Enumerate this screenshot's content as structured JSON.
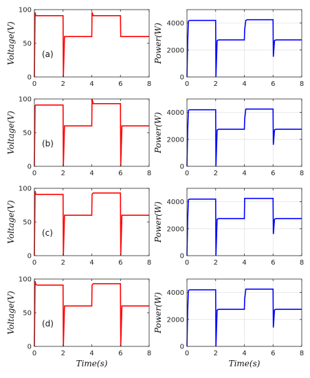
{
  "chart_data": [
    {
      "type": "line",
      "panel": "(a)",
      "quantity": "voltage",
      "ylabel": "Voltage(V)",
      "xlabel": "",
      "xlim": [
        0,
        8
      ],
      "ylim": [
        0,
        100
      ],
      "xticks": [
        "0",
        "2",
        "4",
        "6",
        "8"
      ],
      "yticks": [
        "0",
        "50",
        "100"
      ],
      "grid": "off",
      "series": [
        {
          "color": "#ff0000",
          "x": [
            0,
            0.05,
            0.1,
            0.2,
            2,
            2.02,
            2.1,
            2.2,
            4,
            4.02,
            4.1,
            4.2,
            6,
            6.02,
            6.1,
            6.2,
            8
          ],
          "y": [
            0,
            96,
            91,
            91,
            91,
            0,
            60,
            60,
            60,
            96,
            91,
            91,
            91,
            60,
            60,
            60,
            60
          ]
        }
      ]
    },
    {
      "type": "line",
      "panel": "",
      "quantity": "power",
      "ylabel": "Power(W)",
      "xlabel": "",
      "xlim": [
        0,
        8
      ],
      "ylim": [
        0,
        5000
      ],
      "xticks": [
        "0",
        "2",
        "4",
        "6",
        "8"
      ],
      "yticks": [
        "0",
        "2000",
        "4000"
      ],
      "grid": "on",
      "series": [
        {
          "color": "#0000ff",
          "x": [
            0,
            0.05,
            0.1,
            0.2,
            2,
            2.02,
            2.1,
            2.2,
            4,
            4.02,
            4.1,
            4.2,
            6,
            6.02,
            6.1,
            6.2,
            8
          ],
          "y": [
            0,
            2600,
            4150,
            4200,
            4200,
            0,
            2700,
            2750,
            2750,
            3500,
            4200,
            4250,
            4250,
            1500,
            2700,
            2750,
            2750
          ]
        }
      ]
    },
    {
      "type": "line",
      "panel": "(b)",
      "quantity": "voltage",
      "ylabel": "Voltage(V)",
      "xlabel": "",
      "xlim": [
        0,
        8
      ],
      "ylim": [
        0,
        100
      ],
      "xticks": [
        "0",
        "2",
        "4",
        "6",
        "8"
      ],
      "yticks": [
        "0",
        "50",
        "100"
      ],
      "grid": "off",
      "series": [
        {
          "color": "#ff0000",
          "x": [
            0,
            0.05,
            0.1,
            0.2,
            2,
            2.02,
            2.1,
            2.2,
            4,
            4.02,
            4.1,
            4.2,
            6,
            6.02,
            6.1,
            6.2,
            8
          ],
          "y": [
            0,
            90,
            91,
            91,
            91,
            0,
            60,
            60,
            60,
            100,
            93,
            93,
            93,
            0,
            60,
            60,
            60
          ]
        }
      ]
    },
    {
      "type": "line",
      "panel": "",
      "quantity": "power",
      "ylabel": "Power(W)",
      "xlabel": "",
      "xlim": [
        0,
        8
      ],
      "ylim": [
        0,
        5000
      ],
      "xticks": [
        "0",
        "2",
        "4",
        "6",
        "8"
      ],
      "yticks": [
        "0",
        "2000",
        "4000"
      ],
      "grid": "on",
      "series": [
        {
          "color": "#0000ff",
          "x": [
            0,
            0.05,
            0.1,
            0.2,
            2,
            2.02,
            2.1,
            2.2,
            4,
            4.02,
            4.1,
            4.2,
            6,
            6.02,
            6.1,
            6.2,
            8
          ],
          "y": [
            0,
            2700,
            4150,
            4200,
            4200,
            0,
            2700,
            2750,
            2750,
            3500,
            4250,
            4250,
            4250,
            1600,
            2700,
            2750,
            2750
          ]
        }
      ]
    },
    {
      "type": "line",
      "panel": "(c)",
      "quantity": "voltage",
      "ylabel": "Voltage(V)",
      "xlabel": "",
      "xlim": [
        0,
        8
      ],
      "ylim": [
        0,
        100
      ],
      "xticks": [
        "0",
        "2",
        "4",
        "6",
        "8"
      ],
      "yticks": [
        "0",
        "50",
        "100"
      ],
      "grid": "off",
      "series": [
        {
          "color": "#ff0000",
          "x": [
            0,
            0.05,
            0.1,
            0.2,
            2,
            2.02,
            2.1,
            2.2,
            4,
            4.02,
            4.1,
            4.2,
            6,
            6.02,
            6.1,
            6.2,
            8
          ],
          "y": [
            0,
            96,
            91,
            91,
            91,
            0,
            60,
            60,
            60,
            91,
            93,
            93,
            93,
            0,
            60,
            60,
            60
          ]
        }
      ]
    },
    {
      "type": "line",
      "panel": "",
      "quantity": "power",
      "ylabel": "Power(W)",
      "xlabel": "",
      "xlim": [
        0,
        8
      ],
      "ylim": [
        0,
        5000
      ],
      "xticks": [
        "0",
        "2",
        "4",
        "6",
        "8"
      ],
      "yticks": [
        "0",
        "2000",
        "4000"
      ],
      "grid": "on",
      "series": [
        {
          "color": "#0000ff",
          "x": [
            0,
            0.05,
            0.1,
            0.2,
            2,
            2.02,
            2.1,
            2.2,
            4,
            4.02,
            4.1,
            4.2,
            6,
            6.02,
            6.1,
            6.2,
            8
          ],
          "y": [
            0,
            2700,
            4150,
            4200,
            4200,
            0,
            2700,
            2750,
            2750,
            4250,
            4250,
            4250,
            4250,
            1600,
            2700,
            2750,
            2750
          ]
        }
      ]
    },
    {
      "type": "line",
      "panel": "(d)",
      "quantity": "voltage",
      "ylabel": "Voltage(V)",
      "xlabel": "Time(s)",
      "xlim": [
        0,
        8
      ],
      "ylim": [
        0,
        100
      ],
      "xticks": [
        "0",
        "2",
        "4",
        "6",
        "8"
      ],
      "yticks": [
        "0",
        "50",
        "100"
      ],
      "grid": "off",
      "series": [
        {
          "color": "#ff0000",
          "x": [
            0,
            0.05,
            0.1,
            0.2,
            2,
            2.02,
            2.1,
            2.2,
            4,
            4.02,
            4.1,
            4.2,
            6,
            6.02,
            6.1,
            6.2,
            8
          ],
          "y": [
            0,
            97,
            92,
            91,
            91,
            0,
            60,
            60,
            60,
            91,
            93,
            93,
            93,
            0,
            60,
            60,
            60
          ]
        }
      ]
    },
    {
      "type": "line",
      "panel": "",
      "quantity": "power",
      "ylabel": "Power(W)",
      "xlabel": "Time(s)",
      "xlim": [
        0,
        8
      ],
      "ylim": [
        0,
        5000
      ],
      "xticks": [
        "0",
        "2",
        "4",
        "6",
        "8"
      ],
      "yticks": [
        "0",
        "2000",
        "4000"
      ],
      "grid": "on",
      "series": [
        {
          "color": "#0000ff",
          "x": [
            0,
            0.05,
            0.1,
            0.2,
            2,
            2.02,
            2.1,
            2.2,
            4,
            4.02,
            4.1,
            4.2,
            6,
            6.02,
            6.1,
            6.2,
            8
          ],
          "y": [
            0,
            2700,
            4150,
            4200,
            4200,
            0,
            2700,
            2750,
            2750,
            3500,
            4250,
            4250,
            4250,
            1400,
            2700,
            2750,
            2750
          ]
        }
      ]
    }
  ]
}
